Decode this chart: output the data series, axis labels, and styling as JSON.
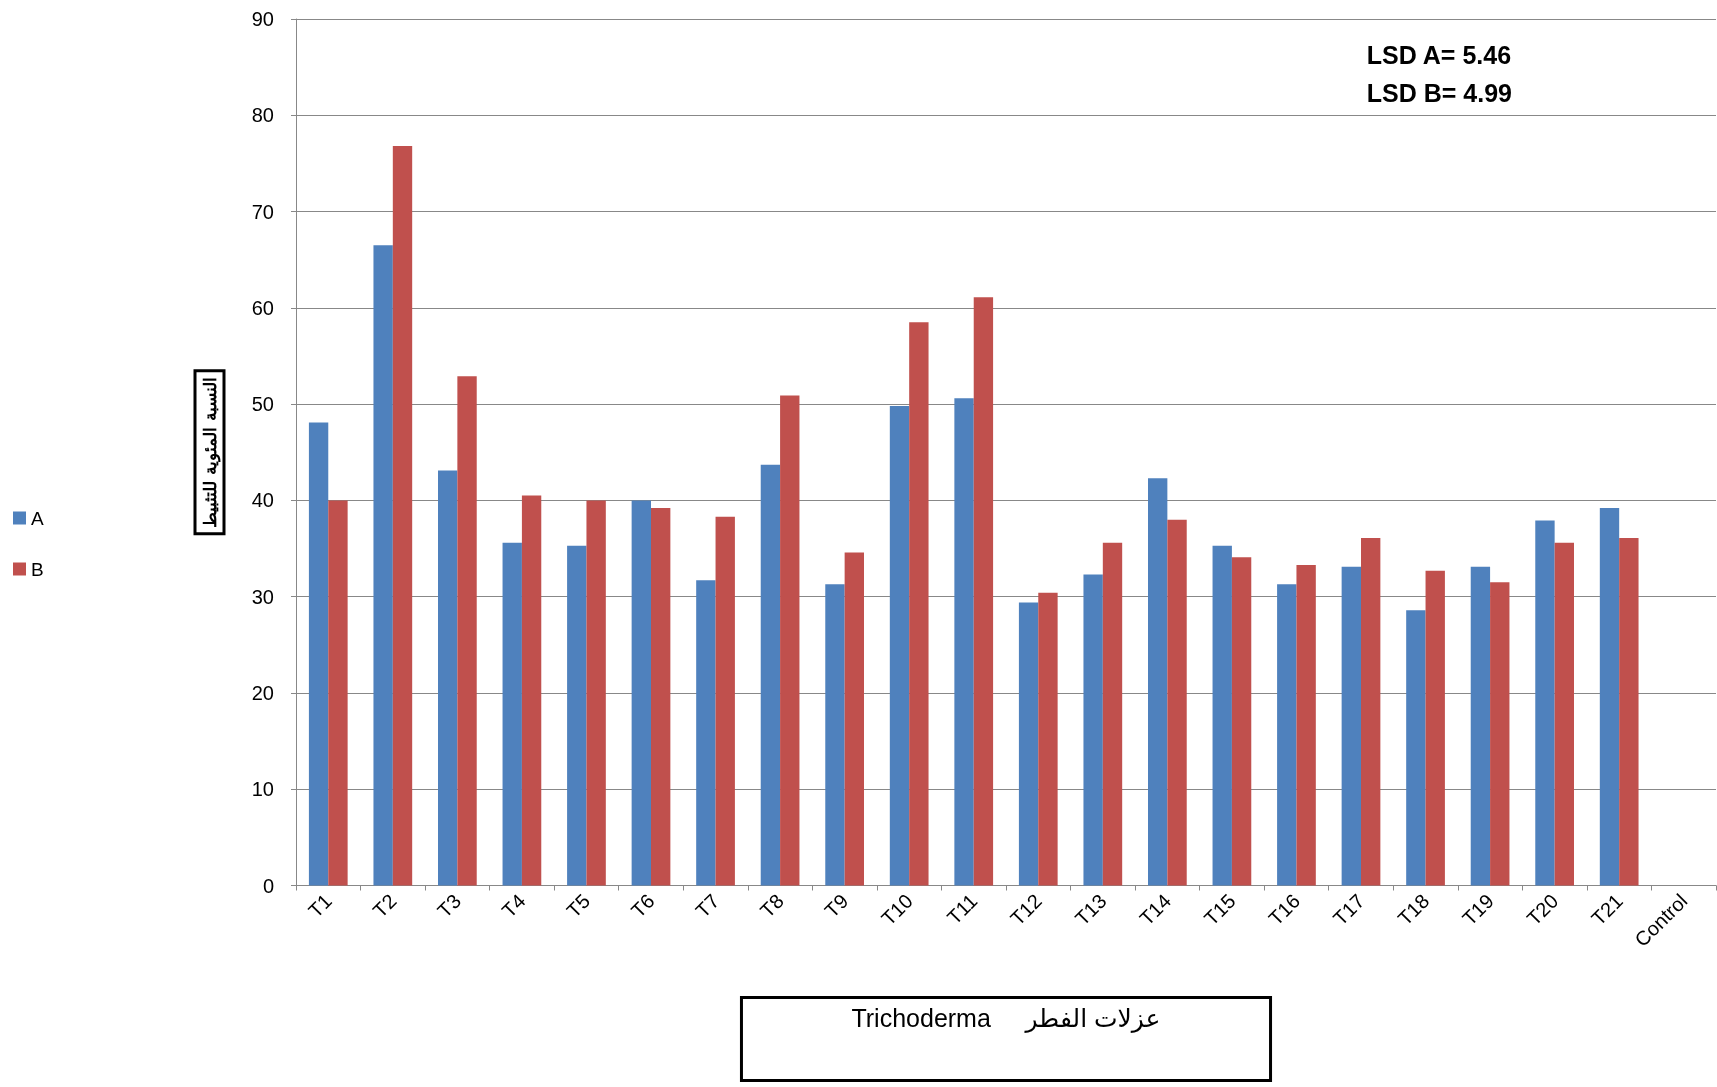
{
  "chart_data": {
    "type": "bar",
    "categories": [
      "T1",
      "T2",
      "T3",
      "T4",
      "T5",
      "T6",
      "T7",
      "T8",
      "T9",
      "T10",
      "T11",
      "T12",
      "T13",
      "T14",
      "T15",
      "T16",
      "T17",
      "T18",
      "T19",
      "T20",
      "T21",
      "Control"
    ],
    "series": [
      {
        "name": "A",
        "color": "#4f81bd",
        "values": [
          48.1,
          66.5,
          43.1,
          35.6,
          35.3,
          40.0,
          31.7,
          43.7,
          31.3,
          49.8,
          50.6,
          29.4,
          32.3,
          42.3,
          35.3,
          31.3,
          33.1,
          28.6,
          33.1,
          37.9,
          39.2,
          null
        ]
      },
      {
        "name": "B",
        "color": "#c0504d",
        "values": [
          40.0,
          76.8,
          52.9,
          40.5,
          40.0,
          39.2,
          38.3,
          50.9,
          34.6,
          58.5,
          61.1,
          30.4,
          35.6,
          38.0,
          34.1,
          33.3,
          36.1,
          32.7,
          31.5,
          35.6,
          36.1,
          null
        ]
      }
    ],
    "xlabel": "Trichoderma     عزلات الفطر",
    "ylabel": "النسبة المئوية للتثبيط",
    "annotations": [
      "LSD A= 5.46",
      "LSD B= 4.99"
    ],
    "ylim": [
      0,
      90
    ],
    "yticks": [
      0,
      10,
      20,
      30,
      40,
      50,
      60,
      70,
      80,
      90
    ],
    "grid": "y",
    "legend": "left"
  }
}
